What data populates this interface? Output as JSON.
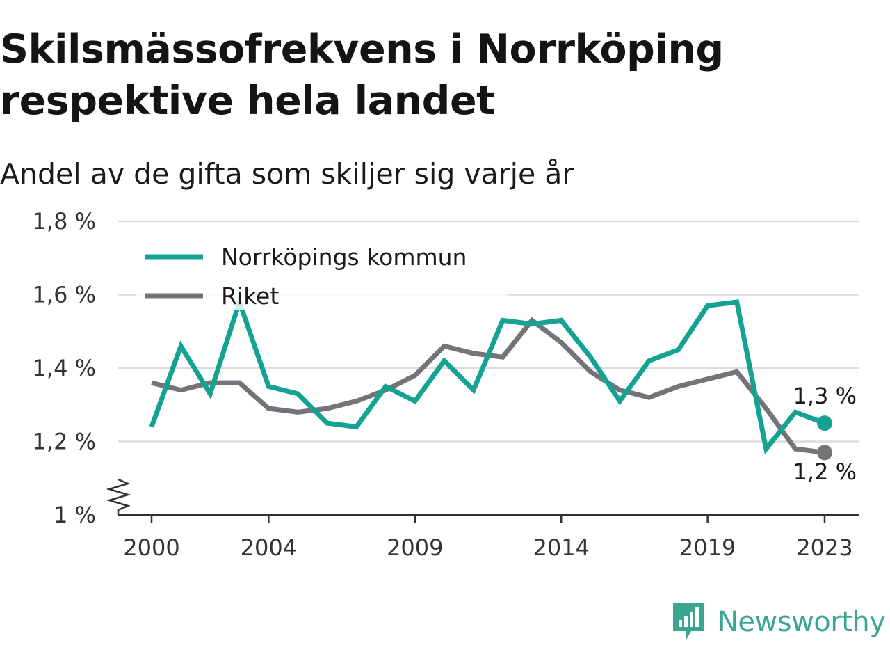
{
  "title": "Skilsmässofrekvens i Norrköping respektive hela landet",
  "subtitle": "Andel av de gifta som skiljer sig varje år",
  "brand": "Newsworthy",
  "colors": {
    "norrkoping": "#14a393",
    "riket": "#75737a",
    "grid": "#dcdcdc",
    "axis": "#333333",
    "brand": "#3aa593"
  },
  "chart_data": {
    "type": "line",
    "x_tick_labels": [
      "2000",
      "2004",
      "2009",
      "2014",
      "2019",
      "2023"
    ],
    "y_tick_labels": [
      "1 %",
      "1,2 %",
      "1,4 %",
      "1,6 %",
      "1,8 %"
    ],
    "ylim": [
      1.0,
      1.8
    ],
    "xlim": [
      2000,
      2023
    ],
    "y_axis_break": true,
    "grid": "horizontal",
    "legend_position": "top-left",
    "x": [
      2000,
      2001,
      2002,
      2003,
      2004,
      2005,
      2006,
      2007,
      2008,
      2009,
      2010,
      2011,
      2012,
      2013,
      2014,
      2015,
      2016,
      2017,
      2018,
      2019,
      2020,
      2021,
      2022,
      2023
    ],
    "series": [
      {
        "name": "Norrköpings kommun",
        "color": "#14a393",
        "values": [
          1.24,
          1.46,
          1.33,
          1.58,
          1.35,
          1.33,
          1.25,
          1.24,
          1.35,
          1.31,
          1.42,
          1.34,
          1.53,
          1.52,
          1.53,
          1.43,
          1.31,
          1.42,
          1.45,
          1.57,
          1.58,
          1.18,
          1.28,
          1.25
        ],
        "end_label": "1,3 %"
      },
      {
        "name": "Riket",
        "color": "#75737a",
        "values": [
          1.36,
          1.34,
          1.36,
          1.36,
          1.29,
          1.28,
          1.29,
          1.31,
          1.34,
          1.38,
          1.46,
          1.44,
          1.43,
          1.53,
          1.47,
          1.39,
          1.34,
          1.32,
          1.35,
          1.37,
          1.39,
          1.29,
          1.18,
          1.17
        ],
        "end_label": "1,2 %"
      }
    ]
  }
}
